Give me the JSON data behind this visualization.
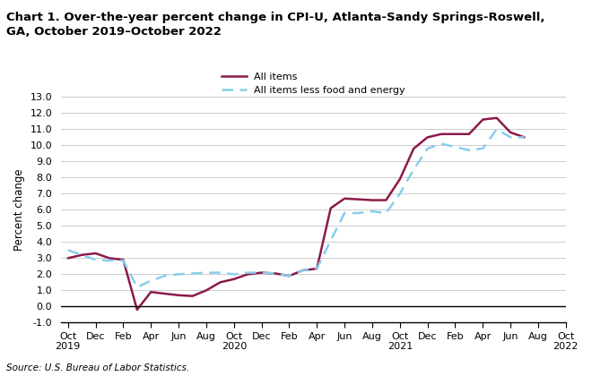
{
  "title": "Chart 1. Over-the-year percent change in CPI-U, Atlanta-Sandy Springs-Roswell,\nGA, October 2019–October 2022",
  "ylabel": "Percent change",
  "source": "Source: U.S. Bureau of Labor Statistics.",
  "legend": [
    "All items",
    "All items less food and energy"
  ],
  "all_items": [
    3.0,
    3.2,
    3.3,
    3.0,
    2.9,
    -0.2,
    0.9,
    0.8,
    0.7,
    0.65,
    1.0,
    1.5,
    1.7,
    2.0,
    2.1,
    2.05,
    1.9,
    2.25,
    2.35,
    6.1,
    6.7,
    6.65,
    6.6,
    6.6,
    7.9,
    9.8,
    10.5,
    10.7,
    10.7,
    10.7,
    11.6,
    11.7,
    10.8,
    10.5
  ],
  "core_items": [
    3.5,
    3.2,
    2.9,
    2.85,
    2.85,
    1.2,
    1.6,
    1.9,
    2.0,
    2.05,
    2.1,
    2.1,
    2.0,
    2.1,
    2.1,
    2.05,
    1.9,
    2.25,
    2.35,
    4.1,
    5.8,
    5.8,
    5.9,
    5.8,
    7.0,
    8.5,
    9.8,
    10.1,
    9.9,
    9.7,
    9.8,
    11.0,
    10.5,
    10.5
  ],
  "all_items_color": "#8B1A4A",
  "core_items_color": "#87CEEB",
  "ylim": [
    -1.0,
    13.0
  ],
  "yticks": [
    -1.0,
    0.0,
    1.0,
    2.0,
    3.0,
    4.0,
    5.0,
    6.0,
    7.0,
    8.0,
    9.0,
    10.0,
    11.0,
    12.0,
    13.0
  ],
  "ytick_labels": [
    "-1.0",
    "0.0",
    "1.0",
    "2.0",
    "3.0",
    "4.0",
    "5.0",
    "6.0",
    "7.0",
    "8.0",
    "9.0",
    "10.0",
    "11.0",
    "12.0",
    "13.0"
  ],
  "x_tick_labels": [
    "Oct\n2019",
    "Dec",
    "Feb",
    "Apr",
    "Jun",
    "Aug",
    "Oct\n2020",
    "Dec",
    "Feb",
    "Apr",
    "Jun",
    "Aug",
    "Oct\n2021",
    "Dec",
    "Feb",
    "Apr",
    "Jun",
    "Aug",
    "Oct\n2022"
  ],
  "x_tick_positions": [
    0,
    2,
    4,
    6,
    8,
    10,
    12,
    14,
    16,
    18,
    20,
    22,
    24,
    26,
    28,
    30,
    32,
    34,
    36
  ],
  "background_color": "#ffffff",
  "grid_color": "#cccccc"
}
